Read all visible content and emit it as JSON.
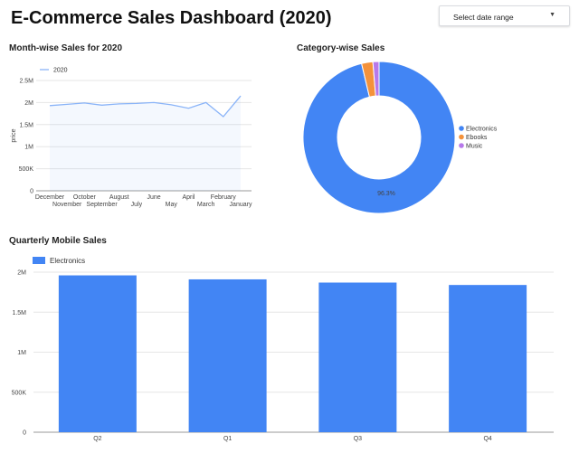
{
  "header": {
    "title": "E-Commerce Sales Dashboard (2020)",
    "date_range_placeholder": "Select date range",
    "caret_icon": "chevron-down-icon"
  },
  "sections": {
    "monthly_title": "Month-wise Sales for 2020",
    "category_title": "Category-wise Sales",
    "quarterly_title": "Quarterly Mobile Sales"
  },
  "colors": {
    "primary": "#4285f4",
    "ebooks": "#f4923b",
    "music": "#b779ea",
    "line": "#8ab4f8",
    "grid": "#e6e6e6"
  },
  "chart_data": [
    {
      "type": "line",
      "title": "Month-wise Sales for 2020",
      "ylabel": "price",
      "xlabel": "",
      "x": [
        "December",
        "November",
        "October",
        "September",
        "August",
        "July",
        "June",
        "May",
        "April",
        "March",
        "February",
        "January"
      ],
      "series": [
        {
          "name": "2020",
          "values": [
            1930000,
            1960000,
            1990000,
            1940000,
            1970000,
            1980000,
            2000000,
            1950000,
            1870000,
            2000000,
            1680000,
            2150000
          ]
        }
      ],
      "ylim": [
        0,
        2500000
      ],
      "yticks": [
        {
          "value": 0,
          "label": "0"
        },
        {
          "value": 500000,
          "label": "500K"
        },
        {
          "value": 1000000,
          "label": "1M"
        },
        {
          "value": 1500000,
          "label": "1.5M"
        },
        {
          "value": 2000000,
          "label": "2M"
        },
        {
          "value": 2500000,
          "label": "2.5M"
        }
      ],
      "legend": "top-left",
      "grid": true
    },
    {
      "type": "pie",
      "title": "Category-wise Sales",
      "donut": true,
      "slices": [
        {
          "label": "Electronics",
          "value": 96.3,
          "color": "#4285f4"
        },
        {
          "label": "Ebooks",
          "value": 2.4,
          "color": "#f4923b"
        },
        {
          "label": "Music",
          "value": 1.3,
          "color": "#b779ea"
        }
      ],
      "data_label": "96.3%",
      "legend": "right"
    },
    {
      "type": "bar",
      "title": "Quarterly Mobile Sales",
      "categories": [
        "Q2",
        "Q1",
        "Q3",
        "Q4"
      ],
      "series": [
        {
          "name": "Electronics",
          "values": [
            1960000,
            1910000,
            1870000,
            1840000
          ]
        }
      ],
      "ylim": [
        0,
        2000000
      ],
      "yticks": [
        {
          "value": 0,
          "label": "0"
        },
        {
          "value": 500000,
          "label": "500K"
        },
        {
          "value": 1000000,
          "label": "1M"
        },
        {
          "value": 1500000,
          "label": "1.5M"
        },
        {
          "value": 2000000,
          "label": "2M"
        }
      ],
      "legend": "top-left",
      "grid": true
    }
  ]
}
